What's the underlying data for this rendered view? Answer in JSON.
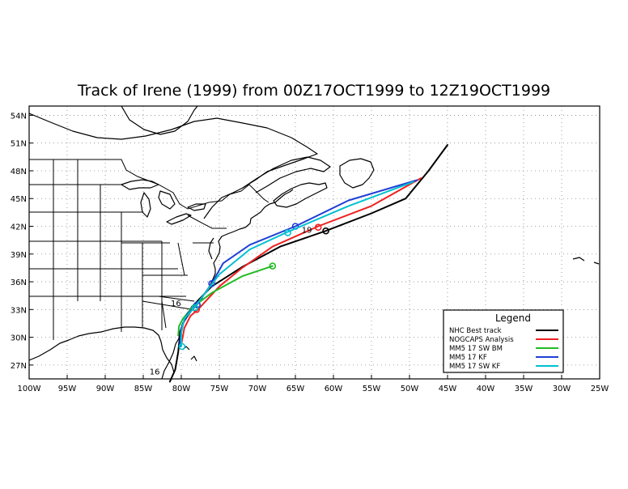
{
  "title": "Track of Irene (1999) from 00Z17OCT1999 to 12Z19OCT1999",
  "map": {
    "lon_range": [
      -100,
      -25
    ],
    "lat_range": [
      25.5,
      55
    ],
    "lat_ticks": [
      {
        "value": 54,
        "label": "54N"
      },
      {
        "value": 51,
        "label": "51N"
      },
      {
        "value": 48,
        "label": "48N"
      },
      {
        "value": 45,
        "label": "45N"
      },
      {
        "value": 42,
        "label": "42N"
      },
      {
        "value": 39,
        "label": "39N"
      },
      {
        "value": 36,
        "label": "36N"
      },
      {
        "value": 33,
        "label": "33N"
      },
      {
        "value": 30,
        "label": "30N"
      },
      {
        "value": 27,
        "label": "27N"
      }
    ],
    "lon_ticks": [
      {
        "value": -100,
        "label": "100W"
      },
      {
        "value": -95,
        "label": "95W"
      },
      {
        "value": -90,
        "label": "90W"
      },
      {
        "value": -85,
        "label": "85W"
      },
      {
        "value": -80,
        "label": "80W"
      },
      {
        "value": -75,
        "label": "75W"
      },
      {
        "value": -70,
        "label": "70W"
      },
      {
        "value": -65,
        "label": "65W"
      },
      {
        "value": -60,
        "label": "60W"
      },
      {
        "value": -55,
        "label": "55W"
      },
      {
        "value": -50,
        "label": "50W"
      },
      {
        "value": -45,
        "label": "45W"
      },
      {
        "value": -40,
        "label": "40W"
      },
      {
        "value": -35,
        "label": "35W"
      },
      {
        "value": -30,
        "label": "30W"
      },
      {
        "value": -25,
        "label": "25W"
      }
    ],
    "grid": "dotted"
  },
  "legend": {
    "title": "Legend",
    "placement": "bottom-right"
  },
  "day_labels": [
    {
      "text": "16",
      "lon": -83.5,
      "lat": 26.0
    },
    {
      "text": "16",
      "lon": -80.7,
      "lat": 33.4
    },
    {
      "text": "19",
      "lon": -63.5,
      "lat": 41.3
    }
  ],
  "tracks": [
    {
      "name": "NHC Best track",
      "color": "#000000",
      "points": [
        [
          -81.5,
          25.2
        ],
        [
          -80.8,
          26.5
        ],
        [
          -80.4,
          28.4
        ],
        [
          -80.2,
          30.0
        ],
        [
          -79.8,
          31.5
        ],
        [
          -78.6,
          33.3
        ],
        [
          -76.0,
          35.5
        ],
        [
          -72.0,
          37.6
        ],
        [
          -67.0,
          39.8
        ],
        [
          -61.0,
          41.5
        ],
        [
          -55.0,
          43.4
        ],
        [
          -50.5,
          45.0
        ],
        [
          -47.5,
          48.0
        ],
        [
          -45.0,
          50.8
        ]
      ],
      "markers": [
        [
          -61.0,
          41.5
        ]
      ]
    },
    {
      "name": "NOGCAPS Analysis",
      "color": "#ee2222",
      "points": [
        [
          -80.0,
          29.2
        ],
        [
          -79.6,
          31.0
        ],
        [
          -78.8,
          32.3
        ],
        [
          -77.8,
          33.0
        ],
        [
          -75.0,
          35.5
        ],
        [
          -72.0,
          37.5
        ],
        [
          -68.0,
          39.8
        ],
        [
          -62.0,
          42.0
        ],
        [
          -55.0,
          44.2
        ],
        [
          -48.5,
          47.2
        ]
      ],
      "markers": [
        [
          -78.0,
          33.0
        ],
        [
          -62.0,
          41.9
        ]
      ]
    },
    {
      "name": "MM5 17 SW BM",
      "color": "#22bb22",
      "points": [
        [
          -80.4,
          30.2
        ],
        [
          -80.3,
          31.2
        ],
        [
          -79.8,
          32.0
        ],
        [
          -78.6,
          33.2
        ],
        [
          -76.0,
          34.8
        ],
        [
          -72.0,
          36.6
        ],
        [
          -68.0,
          37.7
        ]
      ],
      "markers": [
        [
          -68.0,
          37.7
        ]
      ]
    },
    {
      "name": "MM5 17 KF",
      "color": "#1f3fd6",
      "points": [
        [
          -80.2,
          29.0
        ],
        [
          -80.0,
          31.0
        ],
        [
          -79.2,
          32.5
        ],
        [
          -78.0,
          33.5
        ],
        [
          -76.0,
          35.8
        ],
        [
          -74.5,
          38.0
        ],
        [
          -71.0,
          40.0
        ],
        [
          -65.0,
          42.0
        ],
        [
          -58.0,
          44.8
        ],
        [
          -49.0,
          47.0
        ]
      ],
      "markers": [
        [
          -77.9,
          33.5
        ],
        [
          -76.0,
          35.8
        ],
        [
          -65.0,
          42.0
        ]
      ]
    },
    {
      "name": "MM5 17 SW KF",
      "color": "#00c0d0",
      "points": [
        [
          -80.0,
          29.0
        ],
        [
          -80.0,
          30.5
        ],
        [
          -79.6,
          32.0
        ],
        [
          -78.3,
          33.2
        ],
        [
          -75.0,
          36.8
        ],
        [
          -71.0,
          39.5
        ],
        [
          -66.0,
          41.4
        ],
        [
          -58.0,
          44.2
        ],
        [
          -49.5,
          46.8
        ]
      ],
      "markers": [
        [
          -79.9,
          29.0
        ],
        [
          -78.2,
          33.2
        ],
        [
          -66.0,
          41.3
        ]
      ]
    }
  ]
}
